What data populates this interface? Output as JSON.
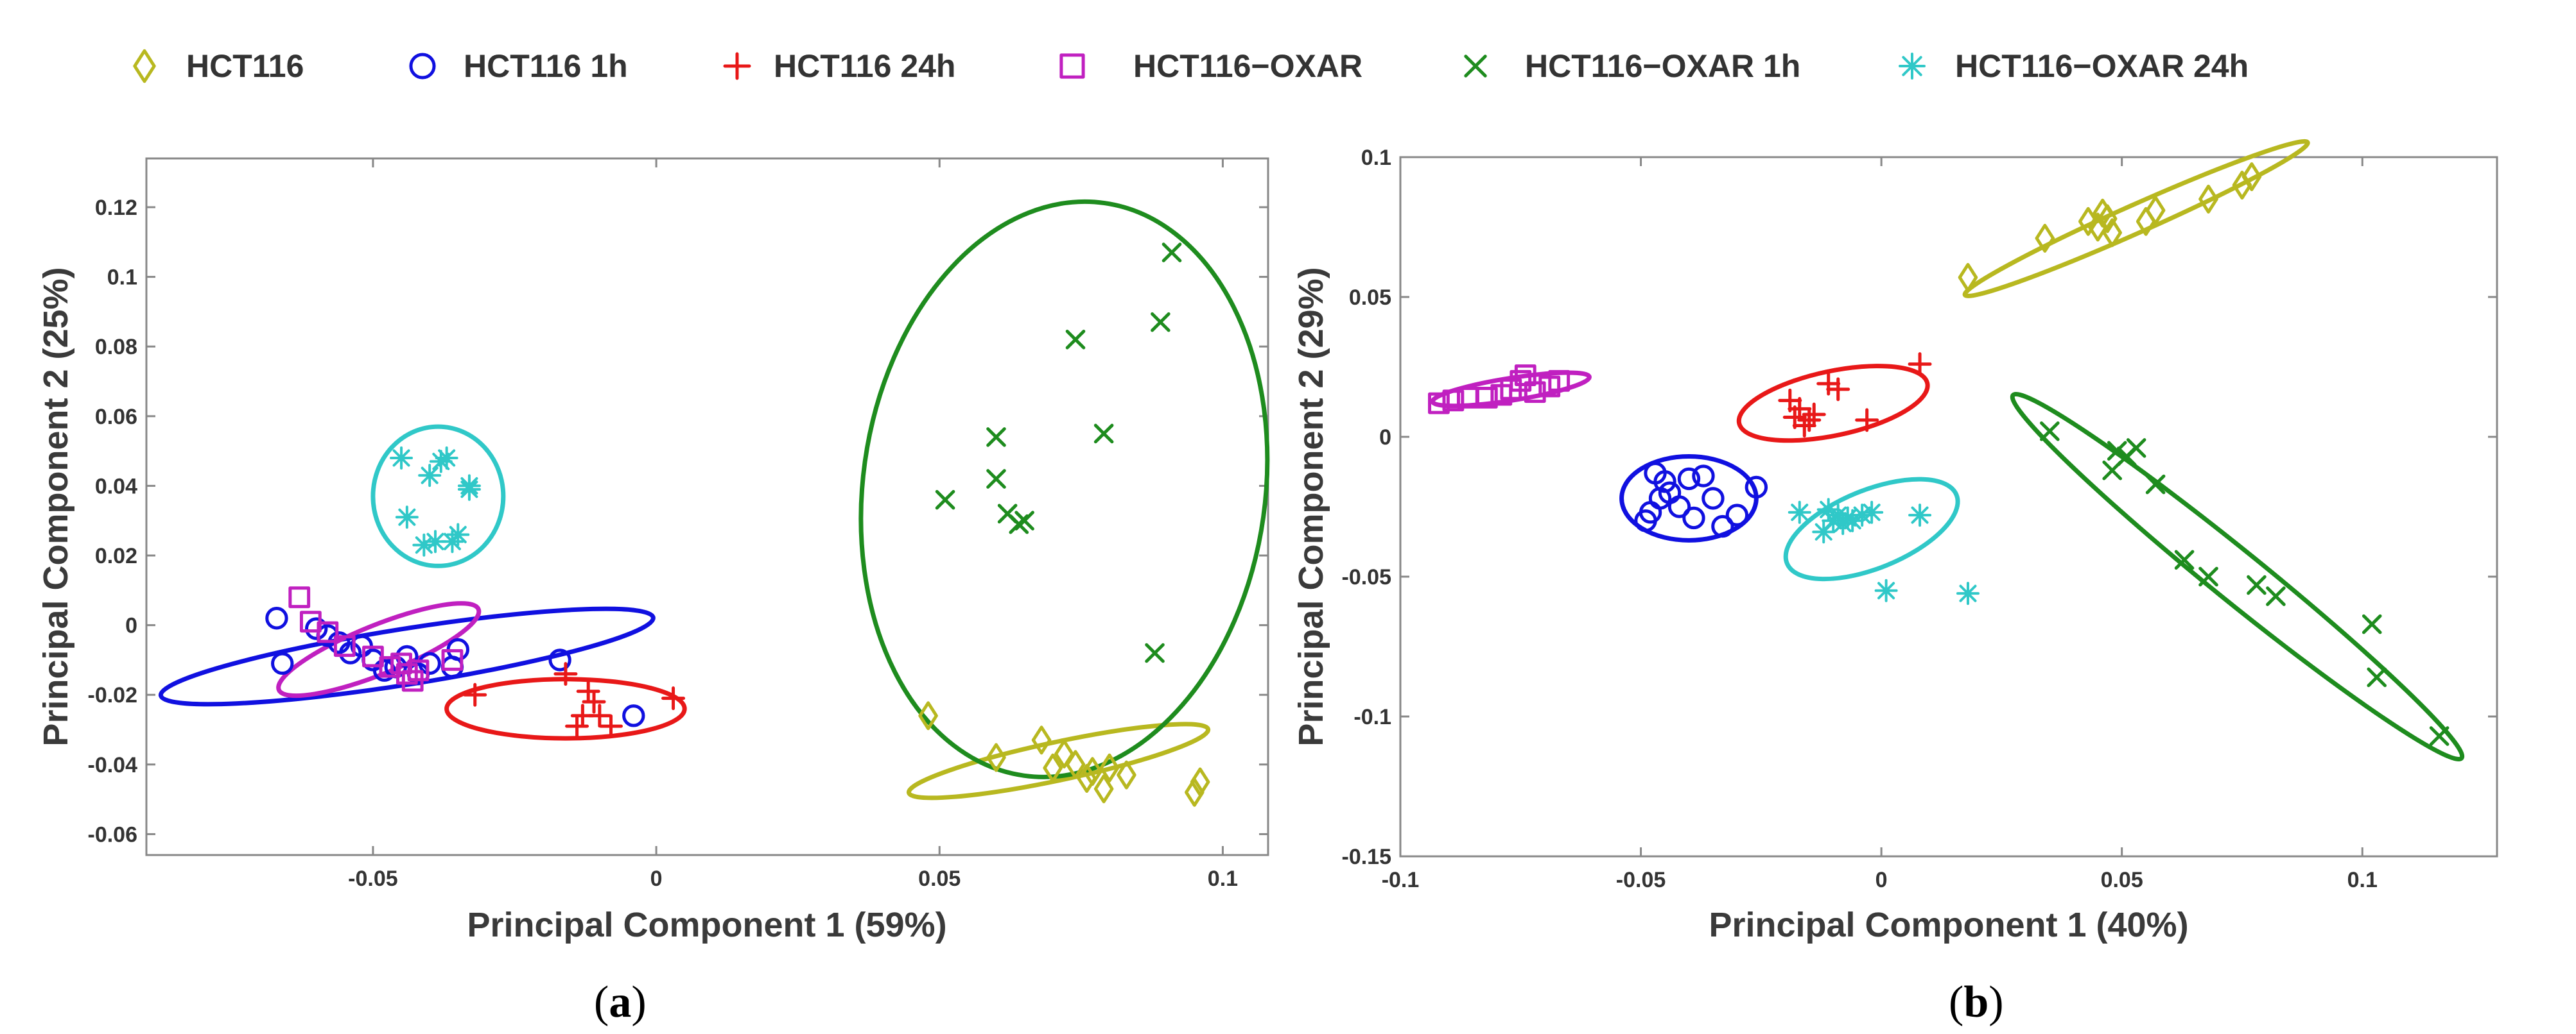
{
  "legend": [
    {
      "key": "HCT116",
      "label": "HCT116",
      "marker": "diamond",
      "color": "#B8B820"
    },
    {
      "key": "HCT116_1h",
      "label": "HCT116 1h",
      "marker": "circle",
      "color": "#1010E0"
    },
    {
      "key": "HCT116_24h",
      "label": "HCT116 24h",
      "marker": "plus",
      "color": "#E81818"
    },
    {
      "key": "OXAR",
      "label": "HCT116−OXAR",
      "marker": "square",
      "color": "#C020C0"
    },
    {
      "key": "OXAR_1h",
      "label": "HCT116−OXAR 1h",
      "marker": "x",
      "color": "#1E8C1E"
    },
    {
      "key": "OXAR_24h",
      "label": "HCT116−OXAR 24h",
      "marker": "asterisk",
      "color": "#30C8C8"
    }
  ],
  "chart_data": [
    {
      "type": "scatter",
      "panel": "a",
      "panel_label": {
        "open": "(",
        "letter": "a",
        "close": ")"
      },
      "xlabel": "Principal Component  1 (59%)",
      "ylabel": "Principal Component  2 (25%)",
      "xlim": [
        -0.09,
        0.108
      ],
      "ylim": [
        -0.066,
        0.134
      ],
      "xticks": [
        -0.05,
        0,
        0.05,
        0.1
      ],
      "xtick_labels": [
        "-0.05",
        "0",
        "0.05",
        "0.1"
      ],
      "yticks": [
        0.12,
        0.1,
        0.08,
        0.06,
        0.04,
        0.02,
        0,
        -0.02,
        -0.04,
        -0.06
      ],
      "ytick_labels": [
        "0.12",
        "0.1",
        "0.08",
        "0.06",
        "0.04",
        "0.02",
        "0",
        "-0.02",
        "-0.04",
        "-0.06"
      ],
      "series": [
        {
          "key": "HCT116",
          "name": "HCT116",
          "x": [
            0.048,
            0.06,
            0.068,
            0.07,
            0.072,
            0.074,
            0.076,
            0.077,
            0.079,
            0.08,
            0.083,
            0.096,
            0.095
          ],
          "y": [
            -0.026,
            -0.038,
            -0.033,
            -0.041,
            -0.037,
            -0.04,
            -0.044,
            -0.042,
            -0.047,
            -0.041,
            -0.043,
            -0.045,
            -0.048
          ],
          "ellipse": {
            "cx": 0.071,
            "cy": -0.039,
            "rx": 0.027,
            "ry": 0.0055,
            "angle": -12
          }
        },
        {
          "key": "HCT116_1h",
          "name": "HCT116 1h",
          "x": [
            -0.067,
            -0.066,
            -0.06,
            -0.058,
            -0.056,
            -0.054,
            -0.052,
            -0.05,
            -0.048,
            -0.046,
            -0.044,
            -0.042,
            -0.04,
            -0.036,
            -0.035,
            -0.017,
            -0.004
          ],
          "y": [
            0.002,
            -0.011,
            -0.001,
            -0.003,
            -0.005,
            -0.008,
            -0.006,
            -0.01,
            -0.013,
            -0.012,
            -0.009,
            -0.014,
            -0.011,
            -0.012,
            -0.007,
            -0.01,
            -0.026
          ],
          "ellipse": {
            "cx": -0.044,
            "cy": -0.009,
            "rx": 0.044,
            "ry": 0.008,
            "angle": -9
          }
        },
        {
          "key": "HCT116_24h",
          "name": "HCT116 24h",
          "x": [
            -0.032,
            -0.016,
            -0.014,
            -0.013,
            -0.012,
            -0.011,
            -0.01,
            -0.008,
            0.003
          ],
          "y": [
            -0.02,
            -0.014,
            -0.029,
            -0.026,
            -0.019,
            -0.022,
            -0.026,
            -0.029,
            -0.021
          ],
          "ellipse": {
            "cx": -0.016,
            "cy": -0.024,
            "rx": 0.021,
            "ry": 0.0085,
            "angle": 0
          }
        },
        {
          "key": "OXAR",
          "name": "HCT116−OXAR",
          "x": [
            -0.063,
            -0.061,
            -0.058,
            -0.055,
            -0.05,
            -0.047,
            -0.045,
            -0.044,
            -0.043,
            -0.042,
            -0.036
          ],
          "y": [
            0.008,
            0.001,
            -0.002,
            -0.006,
            -0.009,
            -0.012,
            -0.011,
            -0.014,
            -0.016,
            -0.013,
            -0.01
          ],
          "ellipse": {
            "cx": -0.049,
            "cy": -0.007,
            "rx": 0.019,
            "ry": 0.007,
            "angle": -22
          }
        },
        {
          "key": "OXAR_1h",
          "name": "HCT116−OXAR 1h",
          "x": [
            0.051,
            0.06,
            0.06,
            0.062,
            0.064,
            0.065,
            0.074,
            0.079,
            0.089,
            0.091,
            0.088
          ],
          "y": [
            0.036,
            0.054,
            0.042,
            0.032,
            0.029,
            0.03,
            0.082,
            0.055,
            0.087,
            0.107,
            -0.008
          ],
          "ellipse": {
            "cx": 0.072,
            "cy": 0.039,
            "rx": 0.0355,
            "ry": 0.083,
            "angle": 8
          }
        },
        {
          "key": "OXAR_24h",
          "name": "HCT116−OXAR 24h",
          "x": [
            -0.045,
            -0.044,
            -0.041,
            -0.04,
            -0.039,
            -0.038,
            -0.037,
            -0.036,
            -0.035,
            -0.033,
            -0.033
          ],
          "y": [
            0.048,
            0.031,
            0.023,
            0.043,
            0.024,
            0.047,
            0.048,
            0.024,
            0.026,
            0.04,
            0.039
          ],
          "ellipse": {
            "cx": -0.0385,
            "cy": 0.037,
            "rx": 0.0115,
            "ry": 0.02,
            "angle": 0
          }
        }
      ]
    },
    {
      "type": "scatter",
      "panel": "b",
      "panel_label": {
        "open": "(",
        "letter": "b",
        "close": ")"
      },
      "xlabel": "Principal Component  1 (40%)",
      "ylabel": "Principal Component  2 (29%)",
      "xlim": [
        -0.1,
        0.128
      ],
      "ylim": [
        -0.15,
        0.1
      ],
      "xticks": [
        -0.1,
        -0.05,
        0,
        0.05,
        0.1
      ],
      "xtick_labels": [
        "-0.1",
        "-0.05",
        "0",
        "0.05",
        "0.1"
      ],
      "yticks": [
        0.1,
        0.05,
        0,
        -0.05,
        -0.1,
        -0.15
      ],
      "ytick_labels": [
        "0.1",
        "0.05",
        "0",
        "-0.05",
        "-0.1",
        "-0.15"
      ],
      "series": [
        {
          "key": "HCT116",
          "name": "HCT116",
          "x": [
            0.018,
            0.034,
            0.043,
            0.045,
            0.046,
            0.047,
            0.048,
            0.055,
            0.057,
            0.068,
            0.075,
            0.077
          ],
          "y": [
            0.057,
            0.071,
            0.077,
            0.075,
            0.08,
            0.078,
            0.073,
            0.077,
            0.081,
            0.085,
            0.09,
            0.093
          ],
          "ellipse": {
            "cx": 0.053,
            "cy": 0.078,
            "rx": 0.039,
            "ry": 0.005,
            "angle": -24
          }
        },
        {
          "key": "HCT116_1h",
          "name": "HCT116 1h",
          "x": [
            -0.049,
            -0.048,
            -0.047,
            -0.046,
            -0.045,
            -0.044,
            -0.042,
            -0.04,
            -0.039,
            -0.037,
            -0.035,
            -0.033,
            -0.03,
            -0.026
          ],
          "y": [
            -0.03,
            -0.027,
            -0.013,
            -0.022,
            -0.016,
            -0.02,
            -0.025,
            -0.015,
            -0.029,
            -0.014,
            -0.022,
            -0.032,
            -0.028,
            -0.018
          ],
          "ellipse": {
            "cx": -0.04,
            "cy": -0.022,
            "rx": 0.014,
            "ry": 0.015,
            "angle": 0
          }
        },
        {
          "key": "HCT116_24h",
          "name": "HCT116 24h",
          "x": [
            -0.019,
            -0.018,
            -0.017,
            -0.016,
            -0.015,
            -0.014,
            -0.011,
            -0.009,
            -0.003,
            0.008
          ],
          "y": [
            0.013,
            0.007,
            0.01,
            0.004,
            0.006,
            0.008,
            0.019,
            0.017,
            0.006,
            0.026
          ],
          "ellipse": {
            "cx": -0.01,
            "cy": 0.012,
            "rx": 0.02,
            "ry": 0.0115,
            "angle": -12
          }
        },
        {
          "key": "OXAR",
          "name": "HCT116−OXAR",
          "x": [
            -0.092,
            -0.089,
            -0.086,
            -0.082,
            -0.079,
            -0.077,
            -0.075,
            -0.074,
            -0.072,
            -0.069,
            -0.067
          ],
          "y": [
            0.012,
            0.013,
            0.014,
            0.014,
            0.015,
            0.017,
            0.02,
            0.022,
            0.016,
            0.018,
            0.02
          ],
          "ellipse": {
            "cx": -0.077,
            "cy": 0.017,
            "rx": 0.0165,
            "ry": 0.004,
            "angle": -9
          }
        },
        {
          "key": "OXAR_1h",
          "name": "HCT116−OXAR 1h",
          "x": [
            0.035,
            0.048,
            0.049,
            0.051,
            0.053,
            0.057,
            0.063,
            0.068,
            0.078,
            0.082,
            0.102,
            0.103,
            0.116
          ],
          "y": [
            0.002,
            -0.012,
            -0.005,
            -0.007,
            -0.004,
            -0.017,
            -0.044,
            -0.05,
            -0.053,
            -0.057,
            -0.067,
            -0.086,
            -0.107
          ],
          "ellipse": {
            "cx": 0.074,
            "cy": -0.05,
            "rx": 0.06,
            "ry": 0.009,
            "angle": 39
          }
        },
        {
          "key": "OXAR_24h",
          "name": "HCT116−OXAR 24h",
          "x": [
            -0.017,
            -0.012,
            -0.011,
            -0.01,
            -0.009,
            -0.008,
            -0.007,
            -0.006,
            -0.004,
            -0.002,
            0.001,
            0.008,
            0.018
          ],
          "y": [
            -0.027,
            -0.034,
            -0.026,
            -0.03,
            -0.028,
            -0.031,
            -0.029,
            -0.03,
            -0.028,
            -0.027,
            -0.055,
            -0.028,
            -0.056
          ],
          "ellipse": {
            "cx": -0.002,
            "cy": -0.033,
            "rx": 0.019,
            "ry": 0.014,
            "angle": -22
          }
        }
      ]
    }
  ]
}
